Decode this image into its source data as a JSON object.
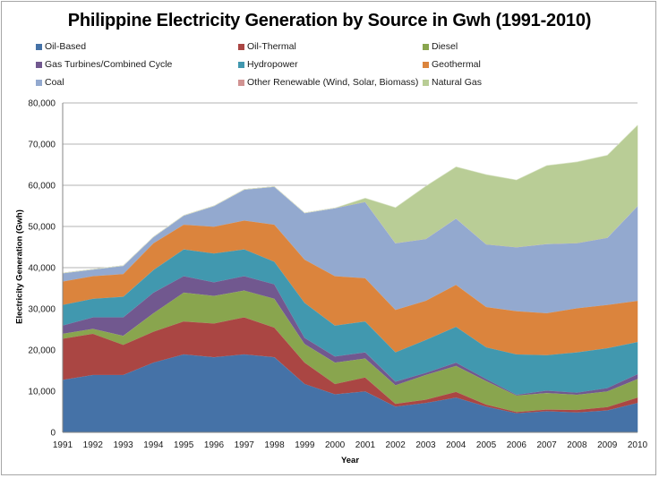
{
  "chart_data": {
    "type": "area",
    "stacked": true,
    "title": "Philippine Electricity Generation by Source in Gwh (1991-2010)",
    "xlabel": "Year",
    "ylabel": "Electricity Generation  (Gwh)",
    "ylim": [
      0,
      80000
    ],
    "yticks": [
      "0",
      "10,000",
      "20,000",
      "30,000",
      "40,000",
      "50,000",
      "60,000",
      "70,000",
      "80,000"
    ],
    "ytick_values": [
      0,
      10000,
      20000,
      30000,
      40000,
      50000,
      60000,
      70000,
      80000
    ],
    "grid": true,
    "legend_position": "top",
    "categories": [
      "1991",
      "1992",
      "1993",
      "1994",
      "1995",
      "1996",
      "1997",
      "1998",
      "1999",
      "2000",
      "2001",
      "2002",
      "2003",
      "2004",
      "2005",
      "2006",
      "2007",
      "2008",
      "2009",
      "2010"
    ],
    "series": [
      {
        "name": "Oil-Based",
        "color": "#4572a7",
        "values": [
          12800,
          14000,
          14000,
          17000,
          19000,
          18300,
          19000,
          18300,
          11800,
          9300,
          10000,
          6300,
          7200,
          8500,
          6300,
          4700,
          5200,
          4900,
          5400,
          7200
        ]
      },
      {
        "name": "Oil-Thermal",
        "color": "#aa4643",
        "values": [
          10000,
          10000,
          7300,
          7500,
          8000,
          8200,
          9000,
          7200,
          5200,
          2500,
          3400,
          700,
          800,
          1400,
          500,
          300,
          400,
          600,
          800,
          1300
        ]
      },
      {
        "name": "Diesel",
        "color": "#89a54e",
        "values": [
          1200,
          1200,
          2200,
          4500,
          7000,
          6700,
          6500,
          7000,
          4500,
          5200,
          4600,
          4500,
          6000,
          6300,
          5700,
          4000,
          4000,
          3700,
          3800,
          4500
        ]
      },
      {
        "name": "Gas Turbines/Combined Cycle",
        "color": "#71588f",
        "values": [
          2000,
          2800,
          4500,
          5000,
          4000,
          3300,
          3500,
          3500,
          1500,
          1500,
          1500,
          900,
          500,
          800,
          500,
          200,
          600,
          500,
          800,
          1200
        ]
      },
      {
        "name": "Hydropower",
        "color": "#4198af",
        "values": [
          5000,
          4500,
          5000,
          5500,
          6500,
          7000,
          6500,
          5500,
          8500,
          7500,
          7500,
          7100,
          8000,
          8700,
          7700,
          9800,
          8600,
          9800,
          9700,
          7800
        ]
      },
      {
        "name": "Geothermal",
        "color": "#db843d",
        "values": [
          5700,
          5500,
          5500,
          6500,
          6000,
          6500,
          7000,
          9000,
          10500,
          12000,
          10500,
          10300,
          9500,
          10200,
          9800,
          10500,
          10200,
          10700,
          10500,
          10000
        ]
      },
      {
        "name": "Coal",
        "color": "#93a9cf",
        "values": [
          2000,
          1600,
          2000,
          1500,
          2200,
          5000,
          7500,
          9200,
          11300,
          16500,
          18500,
          16200,
          15000,
          16100,
          15200,
          15500,
          16800,
          15800,
          16300,
          23000
        ]
      },
      {
        "name": "Other Renewable (Wind, Solar, Biomass)",
        "color": "#d19392",
        "values": [
          0,
          0,
          0,
          0,
          0,
          0,
          0,
          0,
          0,
          0,
          0,
          0,
          0,
          0,
          0,
          0,
          0,
          0,
          0,
          0
        ]
      },
      {
        "name": "Natural Gas",
        "color": "#b9cd96",
        "values": [
          0,
          0,
          0,
          0,
          0,
          0,
          0,
          0,
          0,
          0,
          900,
          8600,
          12800,
          12500,
          16900,
          16300,
          19000,
          19700,
          20000,
          19600
        ]
      }
    ]
  }
}
